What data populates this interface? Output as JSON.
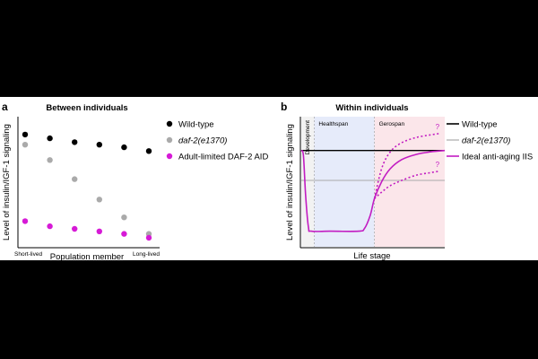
{
  "chart_data": [
    {
      "type": "scatter",
      "panel_label": "a",
      "title": "Between individuals",
      "xlabel": "Population member",
      "ylabel": "Level of insulin/IGF-1 signaling",
      "x_tick_labels": [
        "Short-lived",
        "Long-lived"
      ],
      "x": [
        1,
        2,
        3,
        4,
        5,
        6
      ],
      "ylim": [
        0,
        1
      ],
      "series": [
        {
          "name": "Wild-type",
          "color": "#000000",
          "italic": false,
          "values": [
            0.86,
            0.83,
            0.8,
            0.78,
            0.76,
            0.73
          ]
        },
        {
          "name": "daf-2(e1370)",
          "color": "#aaaaaa",
          "italic": true,
          "values": [
            0.78,
            0.66,
            0.51,
            0.35,
            0.21,
            0.08
          ]
        },
        {
          "name": "Adult-limited DAF-2 AID",
          "color": "#d61ad6",
          "italic": false,
          "values": [
            0.18,
            0.14,
            0.12,
            0.1,
            0.08,
            0.05
          ]
        }
      ]
    },
    {
      "type": "line",
      "panel_label": "b",
      "title": "Within individuals",
      "xlabel": "Life stage",
      "ylabel": "Level of insulin/IGF-1 signaling",
      "xlim": [
        0,
        100
      ],
      "ylim": [
        0,
        1
      ],
      "stages": [
        {
          "name": "Development",
          "start": 0,
          "end": 9,
          "color": "#f2f2f2"
        },
        {
          "name": "Healthspan",
          "start": 9,
          "end": 51,
          "color": "#e6ebfa"
        },
        {
          "name": "Gerospan",
          "start": 51,
          "end": 100,
          "color": "#fbe6ea"
        }
      ],
      "series": [
        {
          "name": "Wild-type",
          "color": "#000000",
          "italic": false,
          "dash": false,
          "x": [
            0,
            100
          ],
          "y": [
            0.74,
            0.74
          ]
        },
        {
          "name": "daf-2(e1370)",
          "color": "#aaaaaa",
          "italic": false,
          "dash": false,
          "x": [
            0,
            100
          ],
          "y": [
            0.51,
            0.51
          ]
        },
        {
          "name": "Ideal anti-aging IIS",
          "color": "#c21cc2",
          "italic": false,
          "dash": false,
          "x": [
            0,
            1.5,
            3,
            5,
            7,
            20,
            40,
            44,
            48,
            51,
            56,
            62,
            70,
            80,
            90,
            100
          ],
          "y": [
            0.74,
            0.7,
            0.4,
            0.15,
            0.12,
            0.12,
            0.12,
            0.14,
            0.24,
            0.37,
            0.5,
            0.6,
            0.67,
            0.71,
            0.73,
            0.74
          ]
        },
        {
          "name": "Ideal anti-aging IIS (upper uncertainty)",
          "color": "#c21cc2",
          "italic": false,
          "dash": true,
          "legend": false,
          "x": [
            51,
            56,
            62,
            70,
            80,
            90,
            96
          ],
          "y": [
            0.37,
            0.6,
            0.73,
            0.8,
            0.84,
            0.86,
            0.87
          ]
        },
        {
          "name": "Ideal anti-aging IIS (lower uncertainty)",
          "color": "#c21cc2",
          "italic": false,
          "dash": true,
          "legend": false,
          "x": [
            51,
            56,
            62,
            70,
            80,
            90,
            96
          ],
          "y": [
            0.37,
            0.42,
            0.47,
            0.51,
            0.55,
            0.57,
            0.58
          ]
        }
      ],
      "annotations": [
        "?",
        "?"
      ]
    }
  ]
}
